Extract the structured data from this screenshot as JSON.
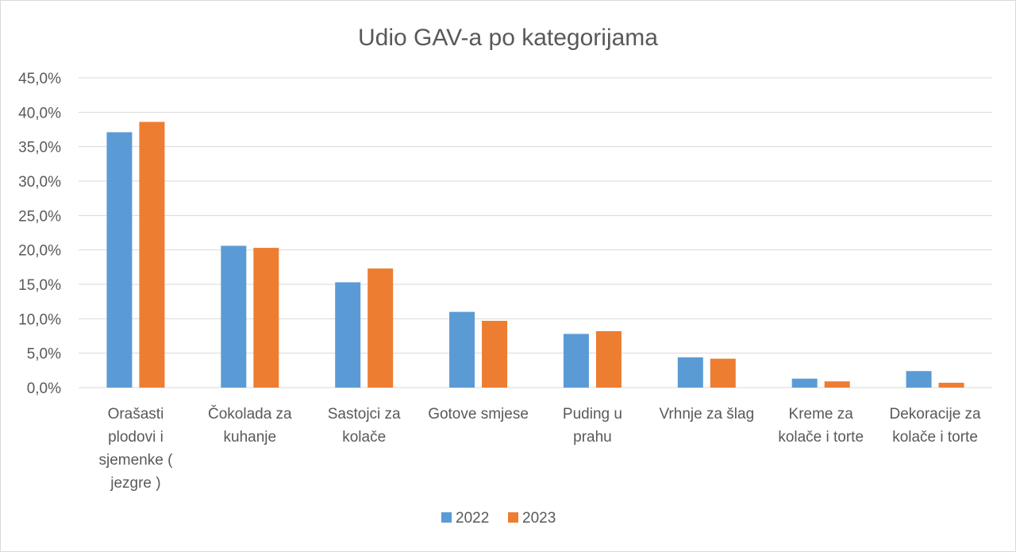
{
  "chart_data": {
    "type": "bar",
    "title": "Udio GAV-a po kategorijama",
    "xlabel": "",
    "ylabel": "",
    "categories": [
      [
        "Orašasti",
        "plodovi i",
        "sjemenke (",
        "jezgre )"
      ],
      [
        "Čokolada za",
        "kuhanje"
      ],
      [
        "Sastojci za",
        "kolače"
      ],
      [
        "Gotove smjese"
      ],
      [
        "Puding u",
        "prahu"
      ],
      [
        "Vrhnje za šlag"
      ],
      [
        "Kreme za",
        "kolače i torte"
      ],
      [
        "Dekoracije za",
        "kolače i torte"
      ]
    ],
    "series": [
      {
        "name": "2022",
        "color": "#5b9bd5",
        "values": [
          37.1,
          20.6,
          15.3,
          11.0,
          7.8,
          4.4,
          1.3,
          2.4
        ]
      },
      {
        "name": "2023",
        "color": "#ed7d31",
        "values": [
          38.6,
          20.3,
          17.3,
          9.7,
          8.2,
          4.2,
          0.9,
          0.7
        ]
      }
    ],
    "ylim": [
      0,
      45
    ],
    "yticks": [
      "0,0%",
      "5,0%",
      "10,0%",
      "15,0%",
      "20,0%",
      "25,0%",
      "30,0%",
      "35,0%",
      "40,0%",
      "45,0%"
    ],
    "ytick_step": 5,
    "grid": true,
    "legend": "bottom",
    "gridline_color": "#d9d9d9",
    "text_color": "#595959"
  }
}
